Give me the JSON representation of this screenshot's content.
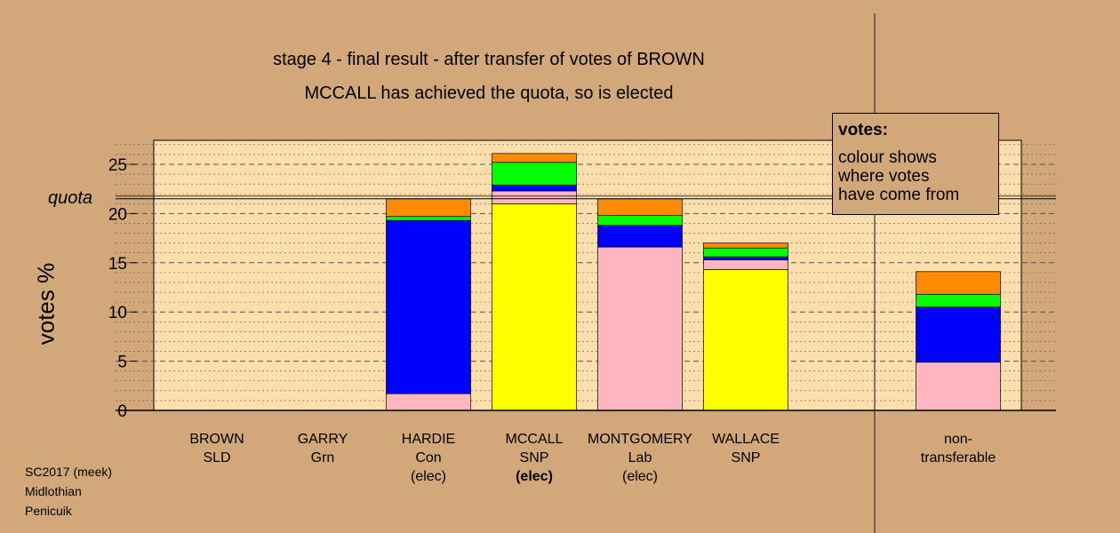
{
  "header": {
    "title": "stage 4 - final result - after transfer of votes of BROWN",
    "subtitle": "MCCALL has achieved the quota, so is elected"
  },
  "legend": {
    "title": "votes:",
    "lines": [
      "colour shows",
      "where votes",
      "have come from"
    ]
  },
  "footer": {
    "line1": "SC2017 (meek)",
    "line2": "Midlothian",
    "line3": "Penicuik"
  },
  "chart_data": {
    "type": "bar",
    "stacked": true,
    "ylabel": "votes %",
    "ylim": [
      0,
      27.5
    ],
    "yticks": [
      0,
      5,
      10,
      15,
      20,
      25
    ],
    "quota": 21.5,
    "quota_label": "quota",
    "grid": true,
    "legend_position": "top-right",
    "categories": [
      {
        "name": "BROWN",
        "party": "SLD",
        "status": ""
      },
      {
        "name": "GARRY",
        "party": "Grn",
        "status": ""
      },
      {
        "name": "HARDIE",
        "party": "Con",
        "status": "(elec)"
      },
      {
        "name": "MCCALL",
        "party": "SNP",
        "status": "(elec)",
        "status_bold": true
      },
      {
        "name": "MONTGOMERY",
        "party": "Lab",
        "status": "(elec)"
      },
      {
        "name": "WALLACE",
        "party": "SNP",
        "status": ""
      },
      {
        "name": "non-",
        "party": "transferable",
        "status": ""
      }
    ],
    "segment_order": [
      "yellow",
      "pink",
      "blue",
      "green",
      "orange"
    ],
    "colors": {
      "yellow": "#FFFF00",
      "pink": "#FFB6C1",
      "blue": "#0000FF",
      "green": "#00FF00",
      "orange": "#FF8C00"
    },
    "stacks": [
      {
        "blue": 0
      },
      {
        "blue": 0
      },
      {
        "blue": 17.6,
        "pink": 1.7,
        "green": 0.4,
        "orange": 1.8
      },
      {
        "yellow": 21.0,
        "blue": 0.6,
        "pink": 1.3,
        "green": 2.3,
        "orange": 0.9
      },
      {
        "pink": 16.6,
        "blue": 2.2,
        "green": 1.0,
        "orange": 1.7
      },
      {
        "yellow": 14.3,
        "blue": 0.3,
        "pink": 1.0,
        "green": 0.9,
        "orange": 0.5
      },
      {
        "blue": 5.6,
        "pink": 4.9,
        "green": 1.3,
        "orange": 2.3
      }
    ]
  }
}
